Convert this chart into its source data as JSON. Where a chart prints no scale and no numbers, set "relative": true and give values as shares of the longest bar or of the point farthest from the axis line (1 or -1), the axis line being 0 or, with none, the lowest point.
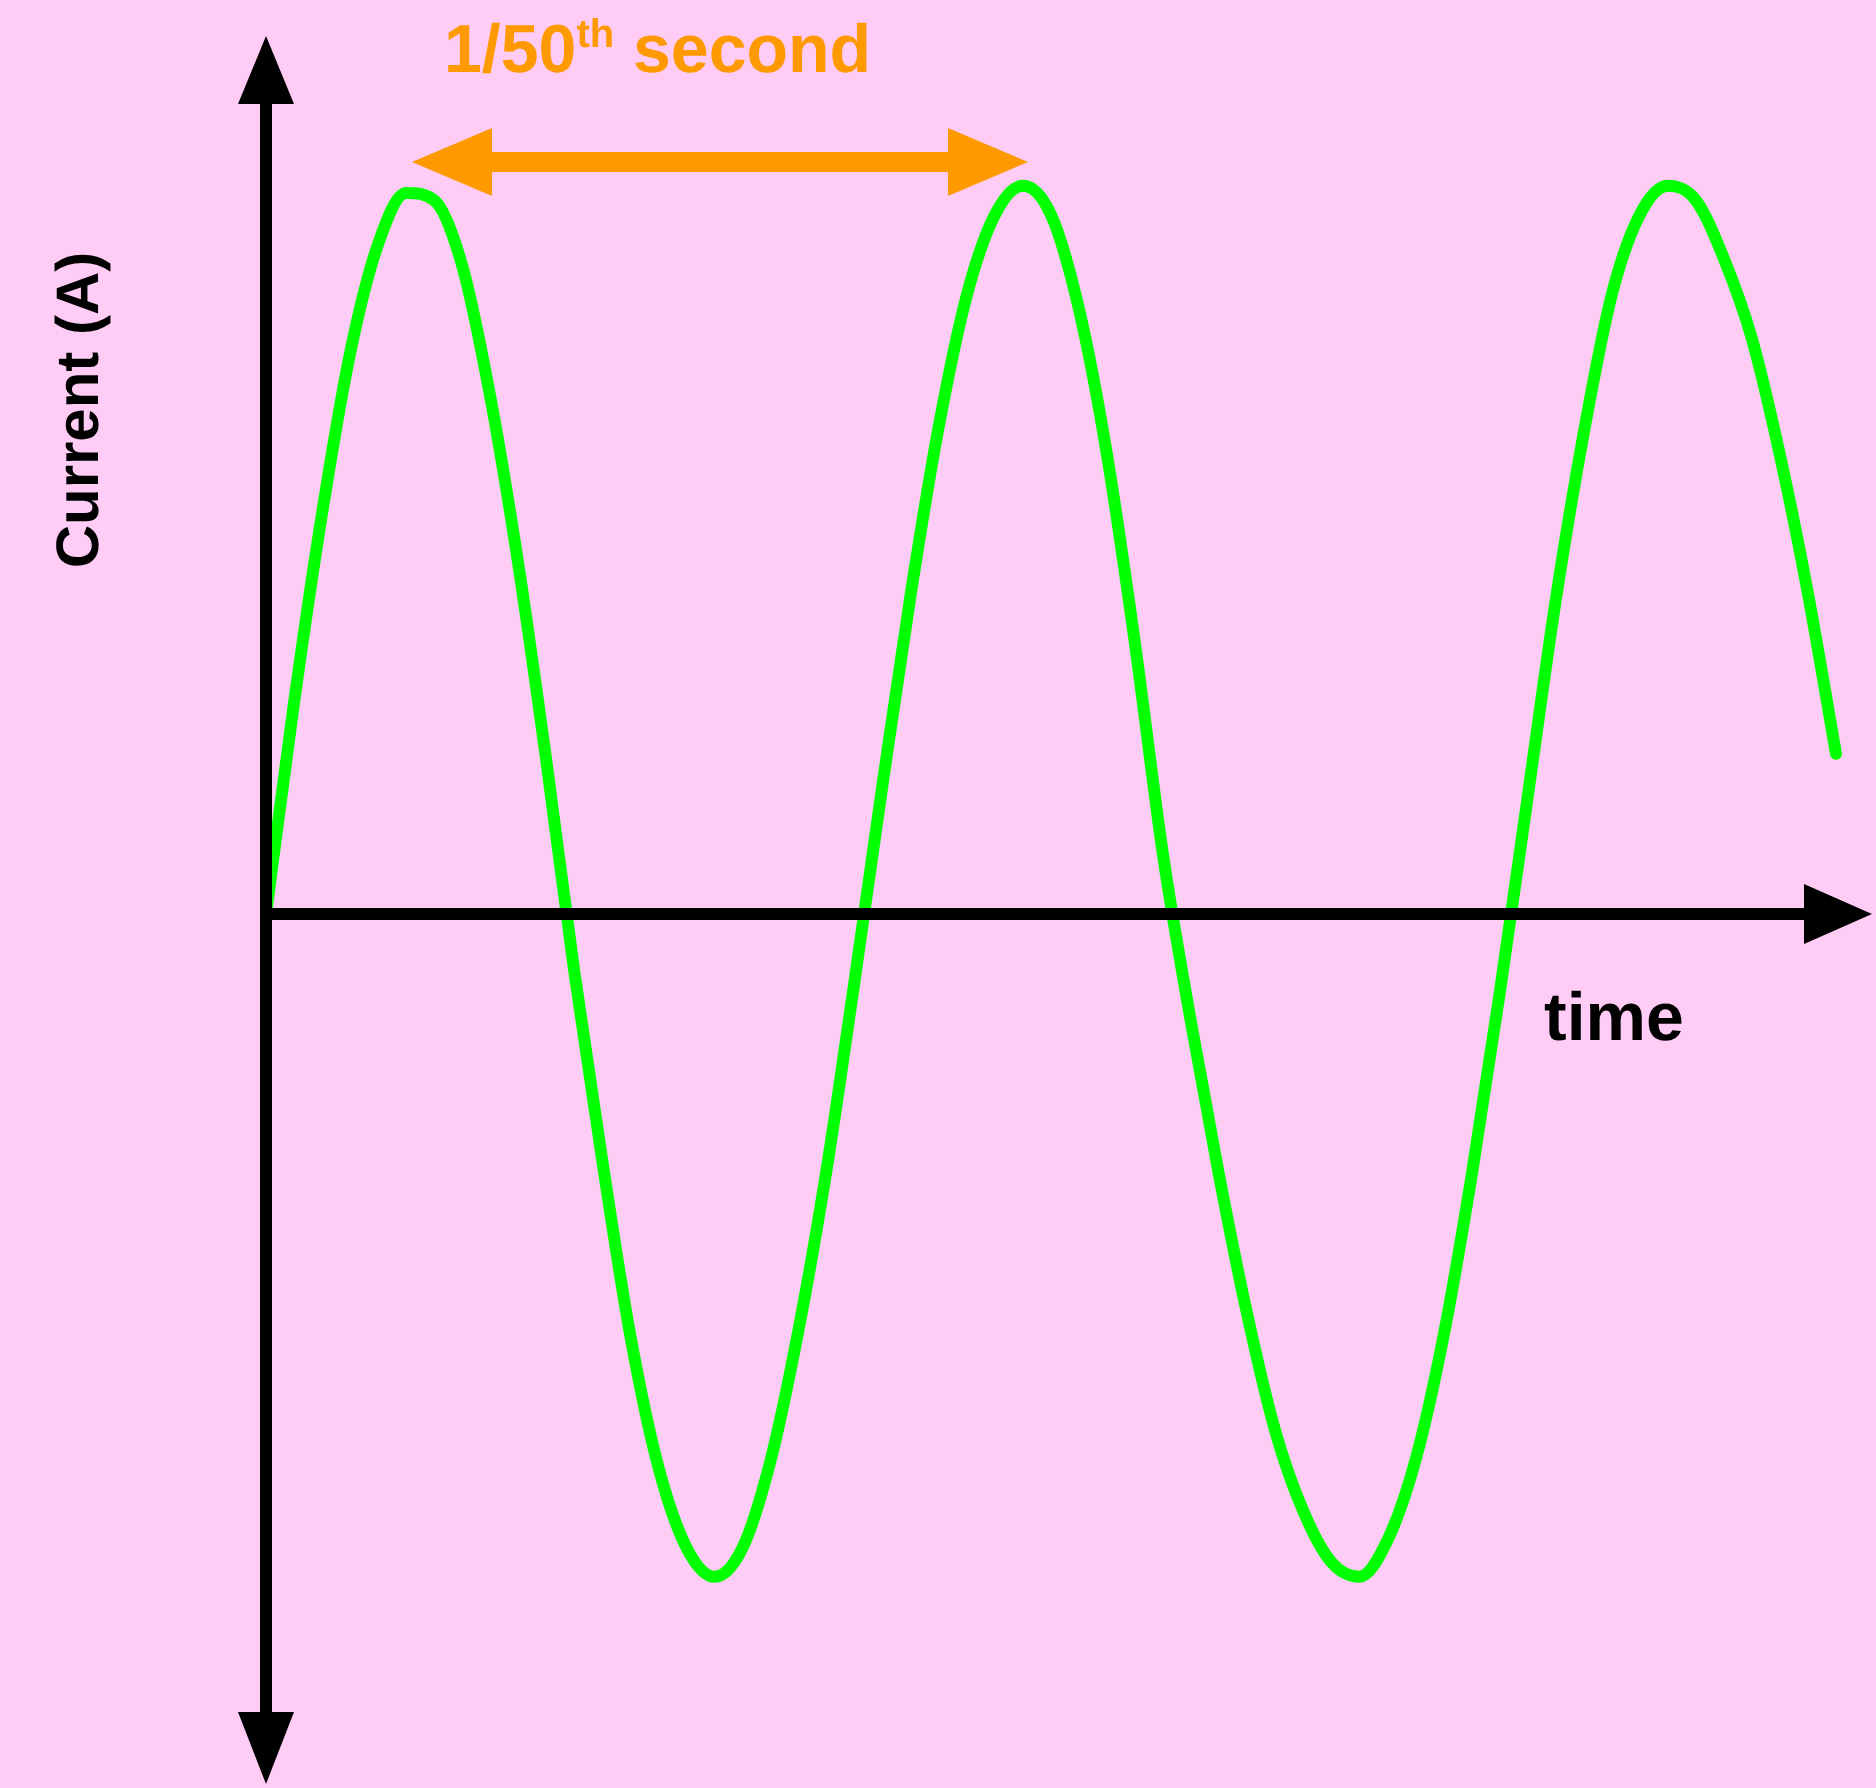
{
  "chart_data": {
    "type": "line",
    "relative": true,
    "ylabel": "Current (A)",
    "xlabel": "time",
    "annotations": [
      "1/50$^{th}$ second"
    ],
    "categories": [
      null,
      null,
      null,
      null,
      null,
      null,
      null,
      null,
      null,
      null,
      null,
      null,
      null,
      null,
      null,
      null,
      null,
      null,
      null,
      null,
      null,
      null,
      null,
      null,
      null,
      null,
      null,
      null,
      null,
      null,
      null,
      null,
      null,
      null,
      null,
      null,
      null,
      null,
      null,
      null,
      null,
      null,
      null,
      null,
      null,
      null,
      null,
      null,
      null,
      null,
      null,
      null,
      null,
      null,
      null,
      null,
      null
    ],
    "series": [
      {
        "color": "#00ff00",
        "values": [
          0,
          0.29,
          0.55,
          0.77,
          0.92,
          0.99,
          0.98,
          0.89,
          0.71,
          0.48,
          0.21,
          -0.08,
          -0.34,
          -0.58,
          -0.76,
          -0.87,
          -0.91,
          -0.87,
          -0.75,
          -0.57,
          -0.35,
          -0.09,
          0.18,
          0.44,
          0.67,
          0.85,
          0.96,
          1,
          0.96,
          0.83,
          0.63,
          0.37,
          0.08,
          -0.15,
          -0.36,
          -0.55,
          -0.71,
          -0.82,
          -0.89,
          -0.91,
          -0.86,
          -0.75,
          -0.58,
          -0.36,
          -0.11,
          0.16,
          0.43,
          0.66,
          0.85,
          0.96,
          1,
          0.98,
          0.9,
          0.79,
          0.63,
          0.44,
          0.22
        ]
      }
    ],
    "legend": false,
    "marker": "none",
    "line_style": "solid"
  }
}
